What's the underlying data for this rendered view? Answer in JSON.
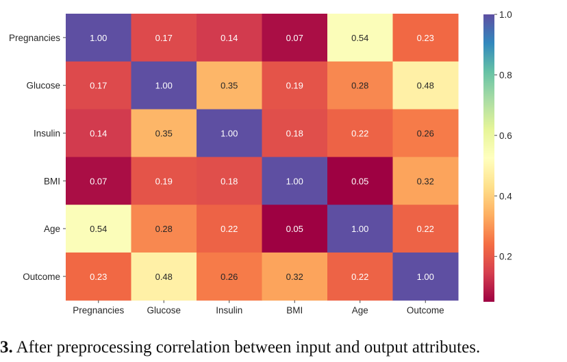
{
  "chart_data": {
    "type": "heatmap",
    "rows": [
      "Pregnancies",
      "Glucose",
      "Insulin",
      "BMI",
      "Age",
      "Outcome"
    ],
    "columns": [
      "Pregnancies",
      "Glucose",
      "Insulin",
      "BMI",
      "Age",
      "Outcome"
    ],
    "values": [
      [
        1.0,
        0.17,
        0.14,
        0.07,
        0.54,
        0.23
      ],
      [
        0.17,
        1.0,
        0.35,
        0.19,
        0.28,
        0.48
      ],
      [
        0.14,
        0.35,
        1.0,
        0.18,
        0.22,
        0.26
      ],
      [
        0.07,
        0.19,
        0.18,
        1.0,
        0.05,
        0.32
      ],
      [
        0.54,
        0.28,
        0.22,
        0.05,
        1.0,
        0.22
      ],
      [
        0.23,
        0.48,
        0.26,
        0.32,
        0.22,
        1.0
      ]
    ],
    "cell_labels": [
      [
        "1.00",
        "0.17",
        "0.14",
        "0.07",
        "0.54",
        "0.23"
      ],
      [
        "0.17",
        "1.00",
        "0.35",
        "0.19",
        "0.28",
        "0.48"
      ],
      [
        "0.14",
        "0.35",
        "1.00",
        "0.18",
        "0.22",
        "0.26"
      ],
      [
        "0.07",
        "0.19",
        "0.18",
        "1.00",
        "0.05",
        "0.32"
      ],
      [
        "0.54",
        "0.28",
        "0.22",
        "0.05",
        "1.00",
        "0.22"
      ],
      [
        "0.23",
        "0.48",
        "0.26",
        "0.32",
        "0.22",
        "1.00"
      ]
    ],
    "colormap": "Spectral",
    "value_range": [
      0.05,
      1.0
    ],
    "colorbar": {
      "ticks": [
        0.2,
        0.4,
        0.6,
        0.8,
        1.0
      ],
      "tick_labels": [
        "0.2",
        "0.4",
        "0.6",
        "0.8",
        "1.0"
      ]
    },
    "colors": {
      "low": "#9e0142",
      "high": "#5e4fa2",
      "text_on_light": "#262626",
      "text_on_dark": "#ffffff"
    }
  },
  "caption": {
    "number": "3.",
    "text": "After preprocessing correlation between input and output attributes."
  }
}
